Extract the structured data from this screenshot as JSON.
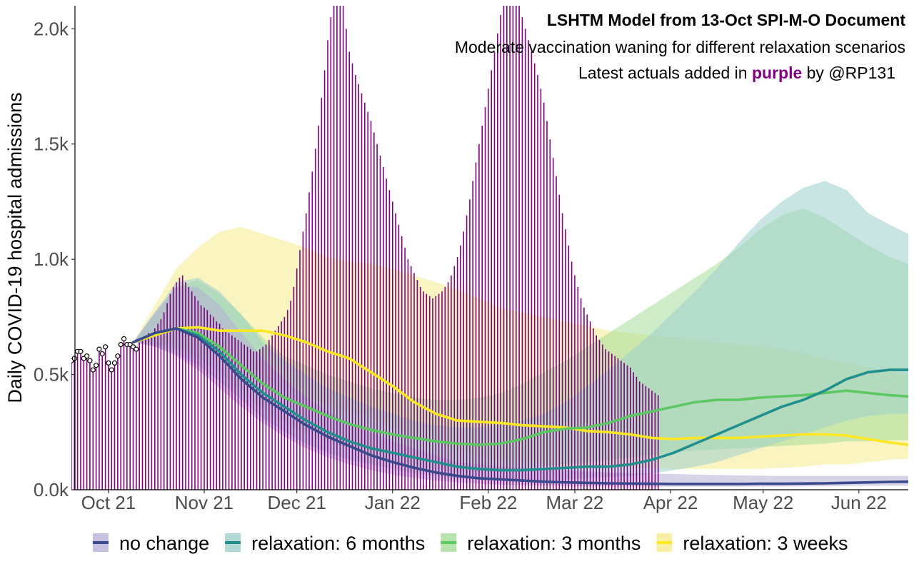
{
  "chart_data": {
    "type": "line",
    "title": "LSHTM Model from 13-Oct SPI-M-O Document",
    "subtitle": "Moderate vaccination waning for different relaxation scenarios",
    "note": {
      "before": "Latest actuals added in ",
      "highlight": "purple",
      "after": " by @RP131",
      "highlight_color": "#800080"
    },
    "ylabel": "Daily COVID-19 hospital admissions",
    "xlabel": "",
    "x_range": [
      "2021-09-19",
      "2022-06-17"
    ],
    "ylim": [
      0,
      2100
    ],
    "y_ticks": [
      {
        "value": 0,
        "label": "0.0k"
      },
      {
        "value": 500,
        "label": "0.5k"
      },
      {
        "value": 1000,
        "label": "1.0k"
      },
      {
        "value": 1500,
        "label": "1.5k"
      },
      {
        "value": 2000,
        "label": "2.0k"
      }
    ],
    "x_ticks": [
      {
        "date": "2021-10-01",
        "label": "Oct 21"
      },
      {
        "date": "2021-11-01",
        "label": "Nov 21"
      },
      {
        "date": "2021-12-01",
        "label": "Dec 21"
      },
      {
        "date": "2022-01-01",
        "label": "Jan 22"
      },
      {
        "date": "2022-02-01",
        "label": "Feb 22"
      },
      {
        "date": "2022-03-01",
        "label": "Mar 22"
      },
      {
        "date": "2022-04-01",
        "label": "Apr 22"
      },
      {
        "date": "2022-05-01",
        "label": "May 22"
      },
      {
        "date": "2022-06-01",
        "label": "Jun 22"
      }
    ],
    "grid": false,
    "legend_position": "bottom",
    "series": [
      {
        "name": "relaxation: 3 weeks",
        "color": "#FDE725",
        "band_color": "#F5EB8C",
        "x": [
          "2021-10-09",
          "2021-10-16",
          "2021-10-23",
          "2021-10-30",
          "2021-11-06",
          "2021-11-13",
          "2021-11-20",
          "2021-11-27",
          "2021-12-04",
          "2021-12-11",
          "2021-12-18",
          "2021-12-25",
          "2022-01-01",
          "2022-01-08",
          "2022-01-15",
          "2022-01-22",
          "2022-01-29",
          "2022-02-05",
          "2022-02-12",
          "2022-02-19",
          "2022-02-26",
          "2022-03-05",
          "2022-03-12",
          "2022-03-19",
          "2022-03-26",
          "2022-04-02",
          "2022-04-09",
          "2022-04-16",
          "2022-04-23",
          "2022-04-30",
          "2022-05-07",
          "2022-05-14",
          "2022-05-21",
          "2022-05-28",
          "2022-06-04",
          "2022-06-11",
          "2022-06-17"
        ],
        "y": [
          640,
          670,
          700,
          705,
          690,
          690,
          690,
          670,
          640,
          600,
          570,
          510,
          450,
          380,
          330,
          300,
          295,
          290,
          280,
          275,
          270,
          255,
          250,
          240,
          225,
          220,
          225,
          225,
          225,
          230,
          235,
          240,
          240,
          235,
          220,
          205,
          195
        ],
        "lower": [
          640,
          630,
          620,
          600,
          560,
          520,
          480,
          440,
          400,
          370,
          340,
          310,
          270,
          240,
          200,
          170,
          150,
          130,
          120,
          110,
          100,
          100,
          100,
          95,
          95,
          90,
          90,
          90,
          90,
          90,
          95,
          100,
          110,
          110,
          120,
          130,
          135
        ],
        "upper": [
          640,
          800,
          960,
          1050,
          1120,
          1140,
          1110,
          1080,
          1050,
          1010,
          990,
          980,
          960,
          930,
          900,
          870,
          830,
          790,
          770,
          750,
          730,
          710,
          690,
          680,
          670,
          660,
          650,
          640,
          630,
          620,
          610,
          590,
          570,
          550,
          530,
          510,
          500
        ]
      },
      {
        "name": "relaxation: 3 months",
        "color": "#5DC863",
        "band_color": "#A5DC9B",
        "x": [
          "2021-10-09",
          "2021-10-16",
          "2021-10-23",
          "2021-10-30",
          "2021-11-06",
          "2021-11-13",
          "2021-11-20",
          "2021-11-27",
          "2021-12-04",
          "2021-12-11",
          "2021-12-18",
          "2021-12-25",
          "2022-01-01",
          "2022-01-08",
          "2022-01-15",
          "2022-01-22",
          "2022-01-29",
          "2022-02-05",
          "2022-02-12",
          "2022-02-19",
          "2022-02-26",
          "2022-03-05",
          "2022-03-12",
          "2022-03-19",
          "2022-03-26",
          "2022-04-02",
          "2022-04-09",
          "2022-04-16",
          "2022-04-23",
          "2022-04-30",
          "2022-05-07",
          "2022-05-14",
          "2022-05-21",
          "2022-05-28",
          "2022-06-04",
          "2022-06-11",
          "2022-06-17"
        ],
        "y": [
          640,
          680,
          700,
          680,
          620,
          540,
          460,
          400,
          360,
          320,
          285,
          260,
          240,
          225,
          210,
          200,
          195,
          200,
          220,
          250,
          265,
          270,
          290,
          320,
          340,
          360,
          380,
          390,
          390,
          400,
          405,
          410,
          420,
          430,
          420,
          410,
          405
        ],
        "lower": [
          640,
          630,
          610,
          570,
          510,
          430,
          350,
          290,
          250,
          210,
          180,
          150,
          120,
          100,
          90,
          80,
          80,
          80,
          90,
          100,
          110,
          120,
          130,
          140,
          150,
          160,
          170,
          175,
          180,
          185,
          190,
          195,
          200,
          210,
          210,
          215,
          215
        ],
        "upper": [
          640,
          760,
          880,
          910,
          850,
          760,
          660,
          580,
          540,
          500,
          470,
          440,
          420,
          400,
          390,
          390,
          400,
          420,
          460,
          510,
          560,
          620,
          680,
          740,
          800,
          860,
          920,
          980,
          1050,
          1130,
          1190,
          1220,
          1180,
          1120,
          1060,
          1010,
          980
        ]
      },
      {
        "name": "relaxation: 6 months",
        "color": "#21908D",
        "band_color": "#9DD0CC",
        "x": [
          "2021-10-09",
          "2021-10-16",
          "2021-10-23",
          "2021-10-30",
          "2021-11-06",
          "2021-11-13",
          "2021-11-20",
          "2021-11-27",
          "2021-12-04",
          "2021-12-11",
          "2021-12-18",
          "2021-12-25",
          "2022-01-01",
          "2022-01-08",
          "2022-01-15",
          "2022-01-22",
          "2022-01-29",
          "2022-02-05",
          "2022-02-12",
          "2022-02-19",
          "2022-02-26",
          "2022-03-05",
          "2022-03-12",
          "2022-03-19",
          "2022-03-26",
          "2022-04-02",
          "2022-04-09",
          "2022-04-16",
          "2022-04-23",
          "2022-04-30",
          "2022-05-07",
          "2022-05-14",
          "2022-05-21",
          "2022-05-28",
          "2022-06-04",
          "2022-06-11",
          "2022-06-17"
        ],
        "y": [
          640,
          680,
          700,
          670,
          600,
          500,
          420,
          360,
          300,
          250,
          210,
          180,
          160,
          140,
          120,
          100,
          90,
          85,
          85,
          90,
          95,
          100,
          100,
          110,
          130,
          160,
          200,
          240,
          280,
          320,
          360,
          390,
          430,
          480,
          510,
          520,
          520
        ],
        "lower": [
          640,
          620,
          590,
          540,
          470,
          390,
          310,
          250,
          200,
          160,
          130,
          110,
          90,
          70,
          60,
          50,
          45,
          40,
          40,
          40,
          45,
          50,
          55,
          60,
          70,
          85,
          100,
          120,
          150,
          180,
          210,
          240,
          270,
          300,
          320,
          330,
          330
        ],
        "upper": [
          640,
          770,
          900,
          920,
          860,
          760,
          640,
          560,
          500,
          440,
          400,
          360,
          330,
          300,
          280,
          270,
          270,
          280,
          300,
          330,
          380,
          450,
          520,
          600,
          680,
          770,
          860,
          960,
          1070,
          1170,
          1250,
          1310,
          1340,
          1300,
          1200,
          1150,
          1110
        ]
      },
      {
        "name": "no change",
        "color": "#3B4A8C",
        "band_color": "#B7B1D6",
        "x": [
          "2021-10-09",
          "2021-10-16",
          "2021-10-23",
          "2021-10-30",
          "2021-11-06",
          "2021-11-13",
          "2021-11-20",
          "2021-11-27",
          "2021-12-04",
          "2021-12-11",
          "2021-12-18",
          "2021-12-25",
          "2022-01-01",
          "2022-01-08",
          "2022-01-15",
          "2022-01-22",
          "2022-01-29",
          "2022-02-05",
          "2022-02-12",
          "2022-02-19",
          "2022-02-26",
          "2022-03-05",
          "2022-03-12",
          "2022-03-19",
          "2022-03-26",
          "2022-04-02",
          "2022-04-09",
          "2022-04-16",
          "2022-04-23",
          "2022-04-30",
          "2022-05-07",
          "2022-05-14",
          "2022-05-21",
          "2022-05-28",
          "2022-06-04",
          "2022-06-11",
          "2022-06-17"
        ],
        "y": [
          640,
          680,
          700,
          660,
          580,
          480,
          400,
          340,
          280,
          230,
          190,
          150,
          120,
          95,
          75,
          60,
          50,
          45,
          40,
          35,
          32,
          30,
          28,
          27,
          26,
          25,
          25,
          25,
          25,
          26,
          26,
          27,
          28,
          30,
          32,
          34,
          35
        ],
        "lower": [
          640,
          620,
          580,
          520,
          440,
          360,
          290,
          230,
          180,
          140,
          110,
          85,
          65,
          50,
          40,
          32,
          26,
          22,
          20,
          18,
          16,
          15,
          14,
          14,
          13,
          13,
          13,
          13,
          13,
          14,
          14,
          15,
          15,
          16,
          17,
          18,
          18
        ],
        "upper": [
          640,
          770,
          880,
          880,
          800,
          680,
          570,
          480,
          400,
          340,
          290,
          250,
          210,
          180,
          150,
          120,
          110,
          100,
          95,
          90,
          85,
          80,
          75,
          72,
          70,
          68,
          66,
          64,
          62,
          61,
          60,
          60,
          60,
          60,
          60,
          60,
          60
        ]
      }
    ],
    "actuals": {
      "name": "Latest actuals",
      "color": "#800080",
      "point_dates": [
        "2021-09-19",
        "2021-09-20",
        "2021-09-21",
        "2021-09-22",
        "2021-09-23",
        "2021-09-24",
        "2021-09-25",
        "2021-09-26",
        "2021-09-27",
        "2021-09-28",
        "2021-09-29",
        "2021-09-30",
        "2021-10-01",
        "2021-10-02",
        "2021-10-03",
        "2021-10-04",
        "2021-10-05",
        "2021-10-06",
        "2021-10-07",
        "2021-10-08",
        "2021-10-09",
        "2021-10-10"
      ],
      "point_values": [
        560,
        570,
        600,
        600,
        570,
        580,
        560,
        520,
        540,
        610,
        590,
        620,
        550,
        520,
        550,
        580,
        630,
        655,
        630,
        630,
        620,
        610
      ],
      "bar_start": "2021-09-19",
      "bar_step_days": 1,
      "bar_values": [
        560,
        570,
        600,
        600,
        570,
        580,
        560,
        520,
        540,
        610,
        590,
        620,
        550,
        520,
        550,
        580,
        630,
        655,
        630,
        630,
        620,
        610,
        640,
        650,
        660,
        680,
        680,
        700,
        720,
        740,
        770,
        810,
        850,
        880,
        900,
        920,
        930,
        900,
        880,
        860,
        840,
        820,
        800,
        790,
        780,
        760,
        750,
        730,
        720,
        700,
        690,
        680,
        670,
        660,
        650,
        640,
        630,
        620,
        610,
        600,
        600,
        610,
        620,
        630,
        650,
        670,
        690,
        710,
        730,
        750,
        780,
        820,
        880,
        960,
        1040,
        1120,
        1200,
        1290,
        1380,
        1480,
        1580,
        1700,
        1820,
        1950,
        2050,
        2150,
        2200,
        2150,
        2100,
        2000,
        1900,
        1850,
        1800,
        1760,
        1720,
        1680,
        1640,
        1600,
        1550,
        1500,
        1450,
        1400,
        1350,
        1300,
        1250,
        1200,
        1150,
        1100,
        1050,
        1000,
        970,
        940,
        910,
        880,
        860,
        850,
        840,
        830,
        840,
        850,
        860,
        880,
        900,
        930,
        970,
        1010,
        1060,
        1120,
        1190,
        1260,
        1340,
        1420,
        1500,
        1580,
        1660,
        1740,
        1820,
        1900,
        1980,
        2060,
        2130,
        2180,
        2200,
        2180,
        2150,
        2100,
        2050,
        2000,
        1950,
        1900,
        1850,
        1800,
        1740,
        1680,
        1600,
        1520,
        1440,
        1360,
        1280,
        1200,
        1130,
        1060,
        990,
        930,
        880,
        830,
        790,
        760,
        730,
        700,
        670,
        650,
        630,
        610,
        600,
        590,
        580,
        570,
        560,
        550,
        540,
        530,
        510,
        490,
        470,
        460,
        450,
        440,
        430,
        420,
        410
      ]
    }
  },
  "legend": {
    "items": [
      {
        "label": "no change",
        "color": "#3B4A8C",
        "fill": "#B7B1D6"
      },
      {
        "label": "relaxation: 6 months",
        "color": "#21908D",
        "fill": "#9DD0CC"
      },
      {
        "label": "relaxation: 3 months",
        "color": "#5DC863",
        "fill": "#A5DC9B"
      },
      {
        "label": "relaxation: 3 weeks",
        "color": "#FDE725",
        "fill": "#F5EB8C"
      }
    ]
  }
}
